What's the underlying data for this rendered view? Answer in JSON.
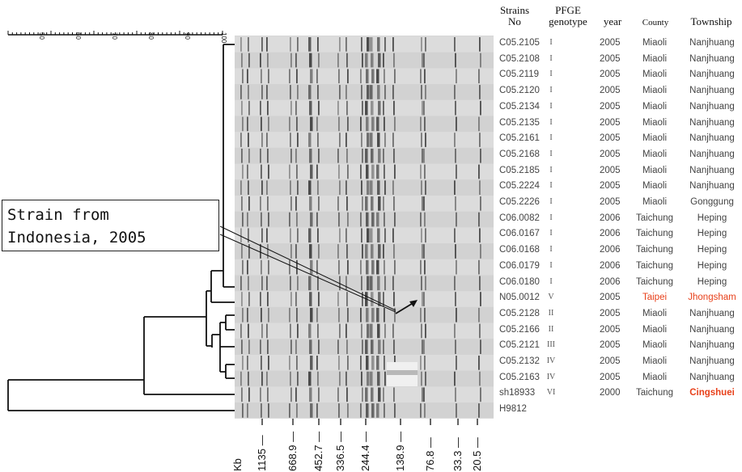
{
  "headers": {
    "strain": [
      "Strains",
      "No"
    ],
    "pfge": [
      "PFGE",
      "genotype"
    ],
    "year": "year",
    "county": "County",
    "township": "Township"
  },
  "scale": {
    "ticks": [
      "50",
      "60",
      "70",
      "80",
      "90",
      "100"
    ]
  },
  "rows": [
    {
      "strain": "C05.2105",
      "genotype": "I",
      "year": "2005",
      "county": "Miaoli",
      "township": "Nanjhuang"
    },
    {
      "strain": "C05.2108",
      "genotype": "I",
      "year": "2005",
      "county": "Miaoli",
      "township": "Nanjhuang"
    },
    {
      "strain": "C05.2119",
      "genotype": "I",
      "year": "2005",
      "county": "Miaoli",
      "township": "Nanjhuang"
    },
    {
      "strain": "C05.2120",
      "genotype": "I",
      "year": "2005",
      "county": "Miaoli",
      "township": "Nanjhuang"
    },
    {
      "strain": "C05.2134",
      "genotype": "I",
      "year": "2005",
      "county": "Miaoli",
      "township": "Nanjhuang"
    },
    {
      "strain": "C05.2135",
      "genotype": "I",
      "year": "2005",
      "county": "Miaoli",
      "township": "Nanjhuang"
    },
    {
      "strain": "C05.2161",
      "genotype": "I",
      "year": "2005",
      "county": "Miaoli",
      "township": "Nanjhuang"
    },
    {
      "strain": "C05.2168",
      "genotype": "I",
      "year": "2005",
      "county": "Miaoli",
      "township": "Nanjhuang"
    },
    {
      "strain": "C05.2185",
      "genotype": "I",
      "year": "2005",
      "county": "Miaoli",
      "township": "Nanjhuang"
    },
    {
      "strain": "C05.2224",
      "genotype": "I",
      "year": "2005",
      "county": "Miaoli",
      "township": "Nanjhuang"
    },
    {
      "strain": "C05.2226",
      "genotype": "I",
      "year": "2005",
      "county": "Miaoli",
      "township": "Gonggung"
    },
    {
      "strain": "C06.0082",
      "genotype": "I",
      "year": "2006",
      "county": "Taichung",
      "township": "Heping"
    },
    {
      "strain": "C06.0167",
      "genotype": "I",
      "year": "2006",
      "county": "Taichung",
      "township": "Heping"
    },
    {
      "strain": "C06.0168",
      "genotype": "I",
      "year": "2006",
      "county": "Taichung",
      "township": "Heping"
    },
    {
      "strain": "C06.0179",
      "genotype": "I",
      "year": "2006",
      "county": "Taichung",
      "township": "Heping"
    },
    {
      "strain": "C06.0180",
      "genotype": "I",
      "year": "2006",
      "county": "Taichung",
      "township": "Heping"
    },
    {
      "strain": "N05.0012",
      "genotype": "V",
      "year": "2005",
      "county": "Taipei",
      "township": "Jhongsham",
      "highlight": true
    },
    {
      "strain": "C05.2128",
      "genotype": "II",
      "year": "2005",
      "county": "Miaoli",
      "township": "Nanjhuang"
    },
    {
      "strain": "C05.2166",
      "genotype": "II",
      "year": "2005",
      "county": "Miaoli",
      "township": "Nanjhuang"
    },
    {
      "strain": "C05.2121",
      "genotype": "III",
      "year": "2005",
      "county": "Miaoli",
      "township": "Nanjhuang"
    },
    {
      "strain": "C05.2132",
      "genotype": "IV",
      "year": "2005",
      "county": "Miaoli",
      "township": "Nanjhuang"
    },
    {
      "strain": "C05.2163",
      "genotype": "IV",
      "year": "2005",
      "county": "Miaoli",
      "township": "Nanjhuang"
    },
    {
      "strain": "sh18933",
      "genotype": "VI",
      "year": "2000",
      "county": "Taichung",
      "township": "Cingshuei",
      "highlight_bold": true
    },
    {
      "strain": "H9812",
      "genotype": "",
      "year": "",
      "county": "",
      "township": ""
    }
  ],
  "annotation": {
    "line1": "Strain from",
    "line2": "Indonesia, 2005"
  },
  "kb": {
    "unit": "Kb",
    "markers": [
      "1135",
      "668.9",
      "452.7",
      "336.5",
      "244.4",
      "138.9",
      "76.8",
      "33.3",
      "20.5"
    ]
  },
  "colors": {
    "highlight": "#e8401a",
    "gel_background": "#d6d6d6"
  }
}
